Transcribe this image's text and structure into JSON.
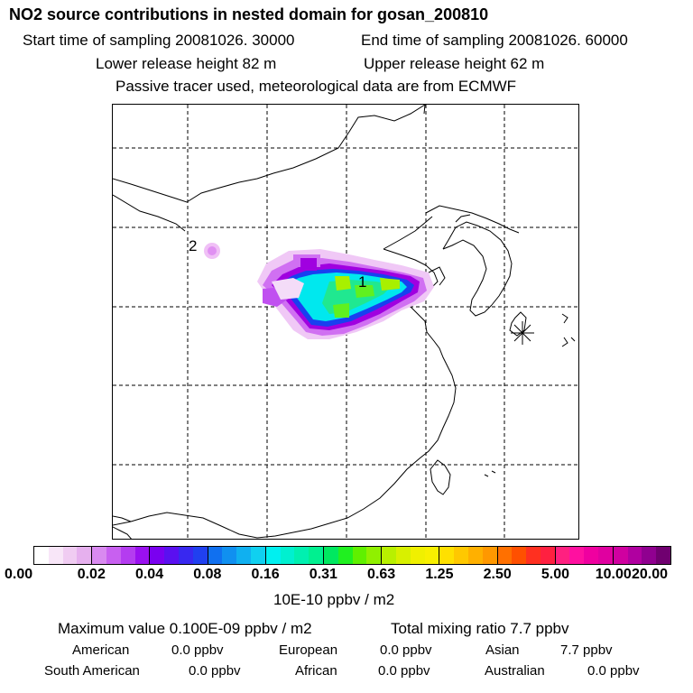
{
  "header": {
    "title": "NO2 source contributions in nested domain for gosan_200810",
    "start_time": "Start time of sampling 20081026. 30000",
    "end_time": "End time of sampling 20081026. 60000",
    "lower_height": "Lower release height   82 m",
    "upper_height": "Upper release height   62 m",
    "tracer_note": "Passive tracer used, meteorological data are from ECMWF"
  },
  "map": {
    "labels": {
      "source1": "1",
      "source2": "2"
    },
    "receptor_marker": "receptor-asterisk",
    "plume_colors": [
      "#f4d9f8",
      "#e89cf4",
      "#c040f0",
      "#b000e0",
      "#00e5ee",
      "#00d8a0",
      "#30f060",
      "#a8f000"
    ]
  },
  "colorbar": {
    "tick_labels": [
      "0.00",
      "0.02",
      "0.04",
      "0.08",
      "0.16",
      "0.31",
      "0.63",
      "1.25",
      "2.50",
      "5.00",
      "10.00",
      "20.00"
    ],
    "segments": [
      [
        "#ffffff",
        "#f8e6f8",
        "#f0ccf2",
        "#e6b0ee"
      ],
      [
        "#d98af0",
        "#c860f0",
        "#b43cf0",
        "#9a10f0"
      ],
      [
        "#7a00f0",
        "#5a10f0",
        "#3828f0",
        "#2040f0"
      ],
      [
        "#1070f0",
        "#1090f0",
        "#10b0f0",
        "#10d0f0"
      ],
      [
        "#00f0f0",
        "#00f0d0",
        "#00f0b0",
        "#00f090"
      ],
      [
        "#00e860",
        "#20f020",
        "#60f000",
        "#90f000"
      ],
      [
        "#b8f000",
        "#d8f000",
        "#f0f000",
        "#f8f000"
      ],
      [
        "#ffe000",
        "#ffc800",
        "#ffb000",
        "#ff9800"
      ],
      [
        "#ff7000",
        "#ff5000",
        "#ff3020",
        "#ff2040"
      ],
      [
        "#ff2080",
        "#ff10a0",
        "#f000a0",
        "#e000a0"
      ],
      [
        "#d000a0",
        "#b000a0",
        "#900090",
        "#700070"
      ]
    ],
    "unit": "10E-10 ppbv / m2"
  },
  "stats": {
    "max_value": "Maximum value  0.100E-09 ppbv / m2",
    "total_mixing": "Total mixing ratio        7.7 ppbv",
    "regions": {
      "american": "American",
      "american_val": "0.0 ppbv",
      "european": "European",
      "european_val": "0.0 ppbv",
      "asian": "Asian",
      "asian_val": "7.7 ppbv",
      "south_american": "South American",
      "south_american_val": "0.0 ppbv",
      "african": "African",
      "african_val": "0.0 ppbv",
      "australian": "Australian",
      "australian_val": "0.0 ppbv"
    }
  }
}
